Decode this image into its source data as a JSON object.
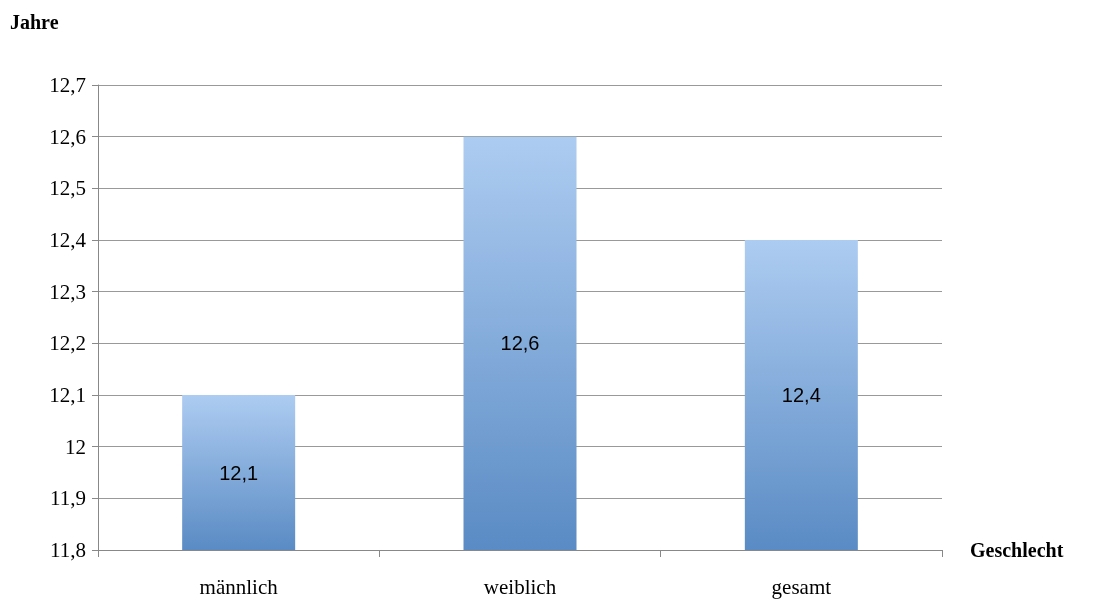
{
  "chart_data": {
    "type": "bar",
    "xlabel": "Geschlecht",
    "ylabel": "Jahre",
    "categories": [
      "männlich",
      "weiblich",
      "gesamt"
    ],
    "values": [
      12.1,
      12.6,
      12.4
    ],
    "value_labels": [
      "12,1",
      "12,6",
      "12,4"
    ],
    "color": "#6aa3e6",
    "ylim": [
      11.8,
      12.7
    ],
    "yticks": [
      {
        "value": 11.8,
        "label": "11,8"
      },
      {
        "value": 11.9,
        "label": "11,9"
      },
      {
        "value": 12,
        "label": "12"
      },
      {
        "value": 12.1,
        "label": "12,1"
      },
      {
        "value": 12.2,
        "label": "12,2"
      },
      {
        "value": 12.3,
        "label": "12,3"
      },
      {
        "value": 12.4,
        "label": "12,4"
      },
      {
        "value": 12.5,
        "label": "12,5"
      },
      {
        "value": 12.6,
        "label": "12,6"
      },
      {
        "value": 12.7,
        "label": "12,7"
      }
    ],
    "grid": "y"
  }
}
